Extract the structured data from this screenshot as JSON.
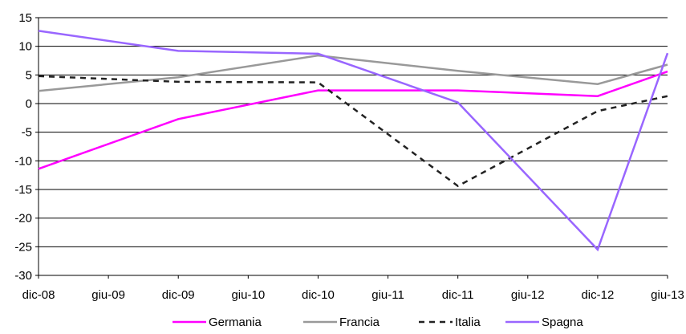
{
  "chart_data": {
    "type": "line",
    "title": "",
    "xlabel": "",
    "ylabel": "",
    "categories": [
      "dic-08",
      "giu-09",
      "dic-09",
      "giu-10",
      "dic-10",
      "giu-11",
      "dic-11",
      "giu-12",
      "dic-12",
      "giu-13"
    ],
    "ylim": [
      -30,
      15
    ],
    "yticks": [
      15,
      10,
      5,
      0,
      -5,
      -10,
      -15,
      -20,
      -25,
      -30
    ],
    "grid": true,
    "legend_position": "bottom",
    "series": [
      {
        "name": "Germania",
        "color": "#ff00ff",
        "dash": "solid",
        "x": [
          "dic-08",
          "dic-09",
          "dic-10",
          "dic-11",
          "dic-12",
          "giu-13"
        ],
        "values": [
          -11.4,
          -2.7,
          2.3,
          2.3,
          1.3,
          5.6
        ]
      },
      {
        "name": "Francia",
        "color": "#999999",
        "dash": "solid",
        "x": [
          "dic-08",
          "dic-09",
          "dic-10",
          "dic-11",
          "dic-12",
          "giu-13"
        ],
        "values": [
          2.2,
          4.6,
          8.4,
          5.7,
          3.4,
          6.8
        ]
      },
      {
        "name": "Italia",
        "color": "#222222",
        "dash": "dashed",
        "x": [
          "dic-08",
          "dic-09",
          "dic-10",
          "dic-11",
          "dic-12",
          "giu-13"
        ],
        "values": [
          4.8,
          3.8,
          3.7,
          -14.4,
          -1.3,
          1.3
        ]
      },
      {
        "name": "Spagna",
        "color": "#9966ff",
        "dash": "solid",
        "x": [
          "dic-08",
          "dic-09",
          "dic-10",
          "dic-11",
          "dic-12",
          "giu-13"
        ],
        "values": [
          12.7,
          9.2,
          8.7,
          0.2,
          -25.5,
          8.8
        ]
      }
    ]
  }
}
